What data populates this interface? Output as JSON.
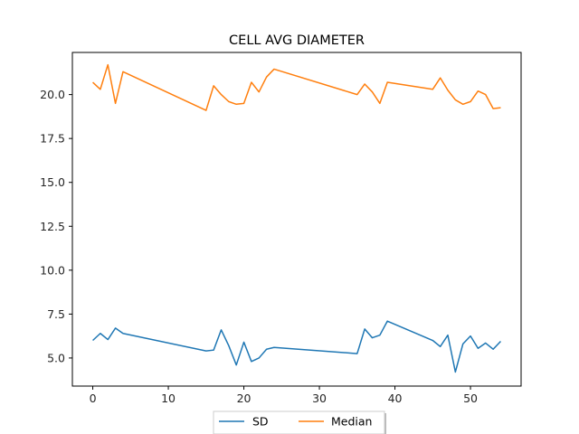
{
  "chart_data": {
    "type": "line",
    "title": "CELL AVG  DIAMETER",
    "xlabel": "",
    "ylabel": "",
    "xlim": [
      -2.7,
      56.7
    ],
    "ylim": [
      3.4,
      22.4
    ],
    "xticks": [
      0,
      10,
      20,
      30,
      40,
      50
    ],
    "yticks": [
      5.0,
      7.5,
      10.0,
      12.5,
      15.0,
      17.5,
      20.0
    ],
    "ytick_labels": [
      "5.0",
      "7.5",
      "10.0",
      "12.5",
      "15.0",
      "17.5",
      "20.0"
    ],
    "grid": false,
    "legend_position": "below-center",
    "x": [
      0,
      1,
      2,
      3,
      4,
      15,
      16,
      17,
      18,
      19,
      20,
      21,
      22,
      23,
      24,
      35,
      36,
      37,
      38,
      39,
      45,
      46,
      47,
      48,
      49,
      50,
      51,
      52,
      53,
      54
    ],
    "series": [
      {
        "name": "SD",
        "color": "#1f77b4",
        "values": [
          6.0,
          6.4,
          6.05,
          6.7,
          6.4,
          5.4,
          5.45,
          6.6,
          5.7,
          4.6,
          5.9,
          4.8,
          5.0,
          5.5,
          5.6,
          5.25,
          6.65,
          6.15,
          6.3,
          7.1,
          6.0,
          5.65,
          6.3,
          4.2,
          5.8,
          6.25,
          5.55,
          5.85,
          5.5,
          5.95
        ]
      },
      {
        "name": "Median",
        "color": "#ff7f0e",
        "values": [
          20.7,
          20.3,
          21.7,
          19.5,
          21.3,
          19.1,
          20.5,
          20.0,
          19.6,
          19.45,
          19.5,
          20.7,
          20.15,
          21.0,
          21.45,
          20.0,
          20.6,
          20.15,
          19.5,
          20.7,
          20.3,
          20.95,
          20.25,
          19.7,
          19.45,
          19.6,
          20.2,
          20.0,
          19.2,
          19.25
        ]
      }
    ]
  }
}
